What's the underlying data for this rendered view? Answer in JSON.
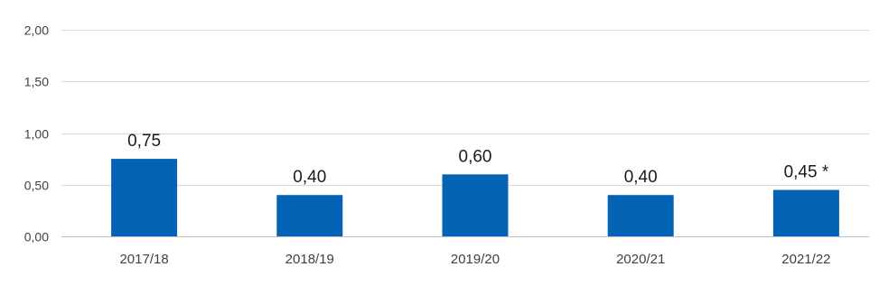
{
  "chart_data": {
    "type": "bar",
    "title": "",
    "xlabel": "",
    "ylabel": "",
    "categories": [
      "2017/18",
      "2018/19",
      "2019/20",
      "2020/21",
      "2021/22"
    ],
    "values": [
      0.75,
      0.4,
      0.6,
      0.4,
      0.45
    ],
    "data_labels": [
      "0,75",
      "0,40",
      "0,60",
      "0,40",
      "0,45 *"
    ],
    "ylim": [
      0,
      2
    ],
    "yticks": [
      0,
      0.5,
      1,
      1.5,
      2
    ],
    "ytick_labels": [
      "0,00",
      "0,50",
      "1,00",
      "1,50",
      "2,00"
    ],
    "grid": true,
    "legend": "none",
    "bar_color": "#0563b5"
  }
}
